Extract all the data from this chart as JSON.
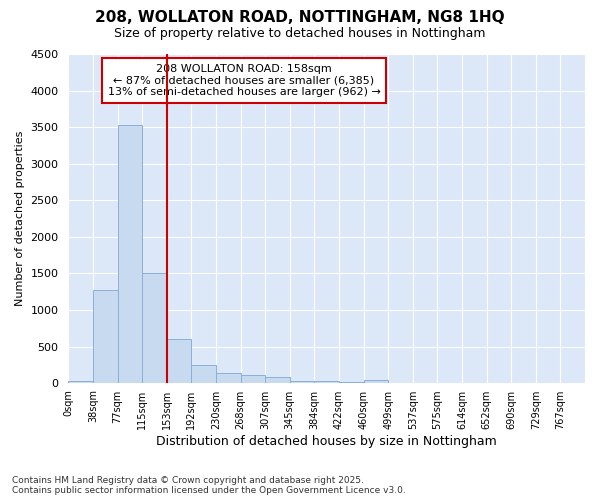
{
  "title": "208, WOLLATON ROAD, NOTTINGHAM, NG8 1HQ",
  "subtitle": "Size of property relative to detached houses in Nottingham",
  "xlabel": "Distribution of detached houses by size in Nottingham",
  "ylabel": "Number of detached properties",
  "bar_color": "#c8daf0",
  "bar_edge_color": "#8ab0d8",
  "background_color": "#dce8f8",
  "grid_color": "#ffffff",
  "bin_labels": [
    "0sqm",
    "38sqm",
    "77sqm",
    "115sqm",
    "153sqm",
    "192sqm",
    "230sqm",
    "268sqm",
    "307sqm",
    "345sqm",
    "384sqm",
    "422sqm",
    "460sqm",
    "499sqm",
    "537sqm",
    "575sqm",
    "614sqm",
    "652sqm",
    "690sqm",
    "729sqm",
    "767sqm"
  ],
  "bar_values": [
    30,
    1280,
    3530,
    1500,
    600,
    250,
    140,
    110,
    80,
    30,
    25,
    20,
    40,
    0,
    0,
    0,
    0,
    0,
    0,
    0,
    0
  ],
  "ylim": [
    0,
    4500
  ],
  "yticks": [
    0,
    500,
    1000,
    1500,
    2000,
    2500,
    3000,
    3500,
    4000,
    4500
  ],
  "property_line_bin": 4,
  "annotation_title": "208 WOLLATON ROAD: 158sqm",
  "annotation_line1": "← 87% of detached houses are smaller (6,385)",
  "annotation_line2": "13% of semi-detached houses are larger (962) →",
  "annotation_color": "#cc0000",
  "footer1": "Contains HM Land Registry data © Crown copyright and database right 2025.",
  "footer2": "Contains public sector information licensed under the Open Government Licence v3.0."
}
